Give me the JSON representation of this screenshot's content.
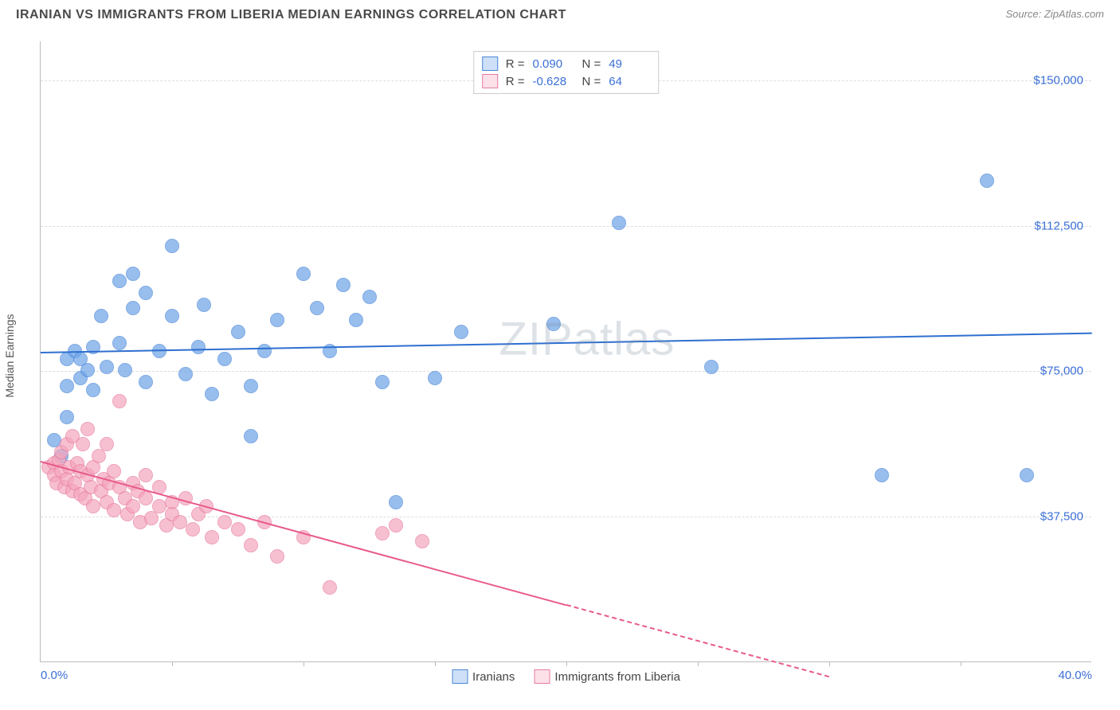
{
  "header": {
    "title": "IRANIAN VS IMMIGRANTS FROM LIBERIA MEDIAN EARNINGS CORRELATION CHART",
    "source": "Source: ZipAtlas.com"
  },
  "watermark": "ZIPatlas",
  "chart": {
    "type": "scatter",
    "ylabel": "Median Earnings",
    "xlim": [
      0,
      40
    ],
    "ylim": [
      0,
      160000
    ],
    "background_color": "#ffffff",
    "grid_color": "#dddddd",
    "axis_color": "#bbbbbb",
    "label_color": "#3b6fd6",
    "yticks": [
      {
        "v": 37500,
        "label": "$37,500"
      },
      {
        "v": 75000,
        "label": "$75,000"
      },
      {
        "v": 112500,
        "label": "$112,500"
      },
      {
        "v": 150000,
        "label": "$150,000"
      }
    ],
    "xticks_minor": [
      5,
      10,
      15,
      20,
      25,
      30,
      35
    ],
    "xtick_labels": [
      {
        "v": 0,
        "label": "0.0%"
      },
      {
        "v": 40,
        "label": "40.0%"
      }
    ],
    "dot_radius": 9,
    "dot_fill_opacity": 0.35,
    "line_width": 2,
    "series": [
      {
        "name": "Iranians",
        "color": "#6da3e8",
        "stroke": "#4a87d8",
        "line_color": "#2e6fd0",
        "r_value": "0.090",
        "n_value": "49",
        "regression": {
          "x1": 0,
          "y1": 80000,
          "x2": 40,
          "y2": 85000
        },
        "points": [
          [
            0.5,
            57000
          ],
          [
            0.8,
            53000
          ],
          [
            1.0,
            71000
          ],
          [
            1.0,
            78000
          ],
          [
            1.0,
            63000
          ],
          [
            1.3,
            80000
          ],
          [
            1.5,
            73000
          ],
          [
            1.5,
            78000
          ],
          [
            1.8,
            75000
          ],
          [
            2.0,
            81000
          ],
          [
            2.0,
            70000
          ],
          [
            2.3,
            89000
          ],
          [
            2.5,
            76000
          ],
          [
            3.0,
            98000
          ],
          [
            3.0,
            82000
          ],
          [
            3.2,
            75000
          ],
          [
            3.5,
            100000
          ],
          [
            3.5,
            91000
          ],
          [
            4.0,
            72000
          ],
          [
            4.0,
            95000
          ],
          [
            4.5,
            80000
          ],
          [
            5.0,
            107000
          ],
          [
            5.0,
            89000
          ],
          [
            5.5,
            74000
          ],
          [
            6.0,
            81000
          ],
          [
            6.2,
            92000
          ],
          [
            6.5,
            69000
          ],
          [
            7.0,
            78000
          ],
          [
            7.5,
            85000
          ],
          [
            8.0,
            71000
          ],
          [
            8.0,
            58000
          ],
          [
            8.5,
            80000
          ],
          [
            9.0,
            88000
          ],
          [
            10.0,
            100000
          ],
          [
            10.5,
            91000
          ],
          [
            11.0,
            80000
          ],
          [
            11.5,
            97000
          ],
          [
            12.0,
            88000
          ],
          [
            12.5,
            94000
          ],
          [
            13.0,
            72000
          ],
          [
            13.5,
            41000
          ],
          [
            15.0,
            73000
          ],
          [
            16.0,
            85000
          ],
          [
            19.5,
            87000
          ],
          [
            22.0,
            113000
          ],
          [
            25.5,
            76000
          ],
          [
            32.0,
            48000
          ],
          [
            36.0,
            124000
          ],
          [
            37.5,
            48000
          ]
        ]
      },
      {
        "name": "Immigrants from Liberia",
        "color": "#f5a6bd",
        "stroke": "#e87ca0",
        "line_color": "#e85a8c",
        "r_value": "-0.628",
        "n_value": "64",
        "regression": {
          "x1": 0,
          "y1": 52000,
          "x2": 20,
          "y2": 15000
        },
        "regression_dashed": {
          "x1": 20,
          "y1": 15000,
          "x2": 30,
          "y2": -3500
        },
        "points": [
          [
            0.3,
            50000
          ],
          [
            0.5,
            51000
          ],
          [
            0.5,
            48000
          ],
          [
            0.6,
            46000
          ],
          [
            0.7,
            52000
          ],
          [
            0.8,
            49000
          ],
          [
            0.8,
            54000
          ],
          [
            0.9,
            45000
          ],
          [
            1.0,
            56000
          ],
          [
            1.0,
            47000
          ],
          [
            1.1,
            50000
          ],
          [
            1.2,
            44000
          ],
          [
            1.2,
            58000
          ],
          [
            1.3,
            46000
          ],
          [
            1.4,
            51000
          ],
          [
            1.5,
            43000
          ],
          [
            1.5,
            49000
          ],
          [
            1.6,
            56000
          ],
          [
            1.7,
            42000
          ],
          [
            1.8,
            48000
          ],
          [
            1.8,
            60000
          ],
          [
            1.9,
            45000
          ],
          [
            2.0,
            50000
          ],
          [
            2.0,
            40000
          ],
          [
            2.2,
            53000
          ],
          [
            2.3,
            44000
          ],
          [
            2.4,
            47000
          ],
          [
            2.5,
            41000
          ],
          [
            2.5,
            56000
          ],
          [
            2.6,
            46000
          ],
          [
            2.8,
            39000
          ],
          [
            2.8,
            49000
          ],
          [
            3.0,
            45000
          ],
          [
            3.0,
            67000
          ],
          [
            3.2,
            42000
          ],
          [
            3.3,
            38000
          ],
          [
            3.5,
            46000
          ],
          [
            3.5,
            40000
          ],
          [
            3.7,
            44000
          ],
          [
            3.8,
            36000
          ],
          [
            4.0,
            42000
          ],
          [
            4.0,
            48000
          ],
          [
            4.2,
            37000
          ],
          [
            4.5,
            40000
          ],
          [
            4.5,
            45000
          ],
          [
            4.8,
            35000
          ],
          [
            5.0,
            41000
          ],
          [
            5.0,
            38000
          ],
          [
            5.3,
            36000
          ],
          [
            5.5,
            42000
          ],
          [
            5.8,
            34000
          ],
          [
            6.0,
            38000
          ],
          [
            6.3,
            40000
          ],
          [
            6.5,
            32000
          ],
          [
            7.0,
            36000
          ],
          [
            7.5,
            34000
          ],
          [
            8.0,
            30000
          ],
          [
            8.5,
            36000
          ],
          [
            9.0,
            27000
          ],
          [
            10.0,
            32000
          ],
          [
            11.0,
            19000
          ],
          [
            13.0,
            33000
          ],
          [
            13.5,
            35000
          ],
          [
            14.5,
            31000
          ]
        ]
      }
    ],
    "corr_legend": {
      "r_label": "R =",
      "n_label": "N ="
    }
  }
}
